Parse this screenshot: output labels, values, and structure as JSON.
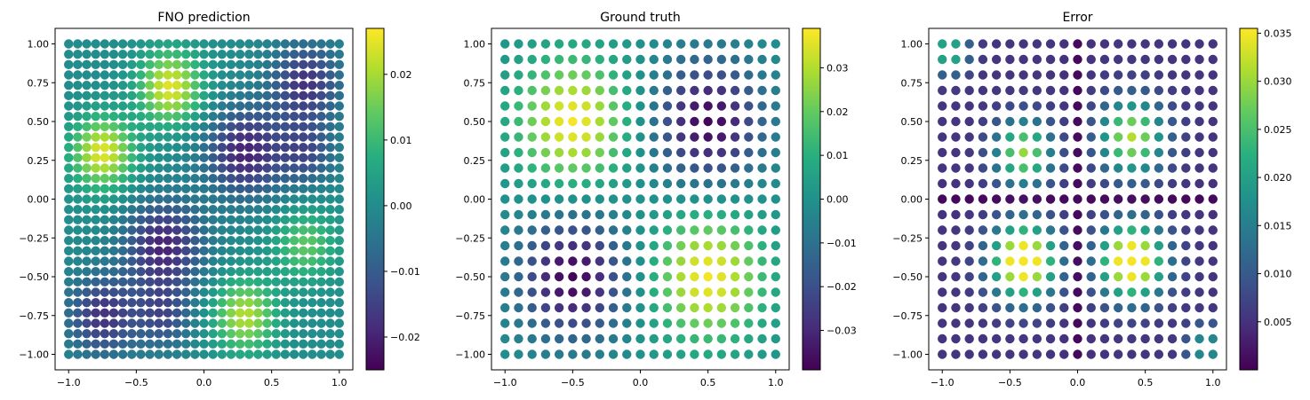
{
  "chart_data": [
    {
      "type": "scatter",
      "title": "FNO prediction",
      "xlabel": "",
      "ylabel": "",
      "grid_n": 31,
      "xlim": [
        -1.1,
        1.1
      ],
      "ylim": [
        -1.1,
        1.1
      ],
      "xticks": [
        "−1.0",
        "−0.5",
        "0.0",
        "0.5",
        "1.0"
      ],
      "yticks": [
        "1.00",
        "0.75",
        "0.50",
        "0.25",
        "0.00",
        "−0.25",
        "−0.50",
        "−0.75",
        "−1.00"
      ],
      "field": {
        "kind": "pred",
        "amplitude": 0.026,
        "offset": 0.0
      },
      "colorbar": {
        "min": -0.025,
        "max": 0.027,
        "ticks": [
          0.02,
          0.01,
          0.0,
          -0.01,
          -0.02
        ],
        "tick_labels": [
          "0.02",
          "0.01",
          "0.00",
          "−0.01",
          "−0.02"
        ]
      },
      "grid": false,
      "colormap": "viridis"
    },
    {
      "type": "scatter",
      "title": "Ground truth",
      "xlabel": "",
      "ylabel": "",
      "grid_n": 21,
      "xlim": [
        -1.1,
        1.1
      ],
      "ylim": [
        -1.1,
        1.1
      ],
      "xticks": [
        "−1.0",
        "−0.5",
        "0.0",
        "0.5",
        "1.0"
      ],
      "yticks": [
        "1.00",
        "0.75",
        "0.50",
        "0.25",
        "0.00",
        "−0.25",
        "−0.50",
        "−0.75",
        "−1.00"
      ],
      "field": {
        "kind": "truth",
        "amplitude": 0.038,
        "offset": 0.0
      },
      "colorbar": {
        "min": -0.039,
        "max": 0.039,
        "ticks": [
          0.03,
          0.02,
          0.01,
          0.0,
          -0.01,
          -0.02,
          -0.03
        ],
        "tick_labels": [
          "0.03",
          "0.02",
          "0.01",
          "0.00",
          "−0.01",
          "−0.02",
          "−0.03"
        ]
      },
      "grid": false,
      "colormap": "viridis"
    },
    {
      "type": "scatter",
      "title": "Error",
      "xlabel": "",
      "ylabel": "",
      "grid_n": 21,
      "xlim": [
        -1.1,
        1.1
      ],
      "ylim": [
        -1.1,
        1.1
      ],
      "xticks": [
        "−1.0",
        "−0.5",
        "0.0",
        "0.5",
        "1.0"
      ],
      "yticks": [
        "1.00",
        "0.75",
        "0.50",
        "0.25",
        "0.00",
        "−0.25",
        "−0.50",
        "−0.75",
        "−1.00"
      ],
      "field": {
        "kind": "error",
        "amplitude": 0.035,
        "offset": 0.0
      },
      "colorbar": {
        "min": 0.0,
        "max": 0.0355,
        "ticks": [
          0.035,
          0.03,
          0.025,
          0.02,
          0.015,
          0.01,
          0.005
        ],
        "tick_labels": [
          "0.035",
          "0.030",
          "0.025",
          "0.020",
          "0.015",
          "0.010",
          "0.005"
        ]
      },
      "grid": false,
      "colormap": "viridis"
    }
  ]
}
